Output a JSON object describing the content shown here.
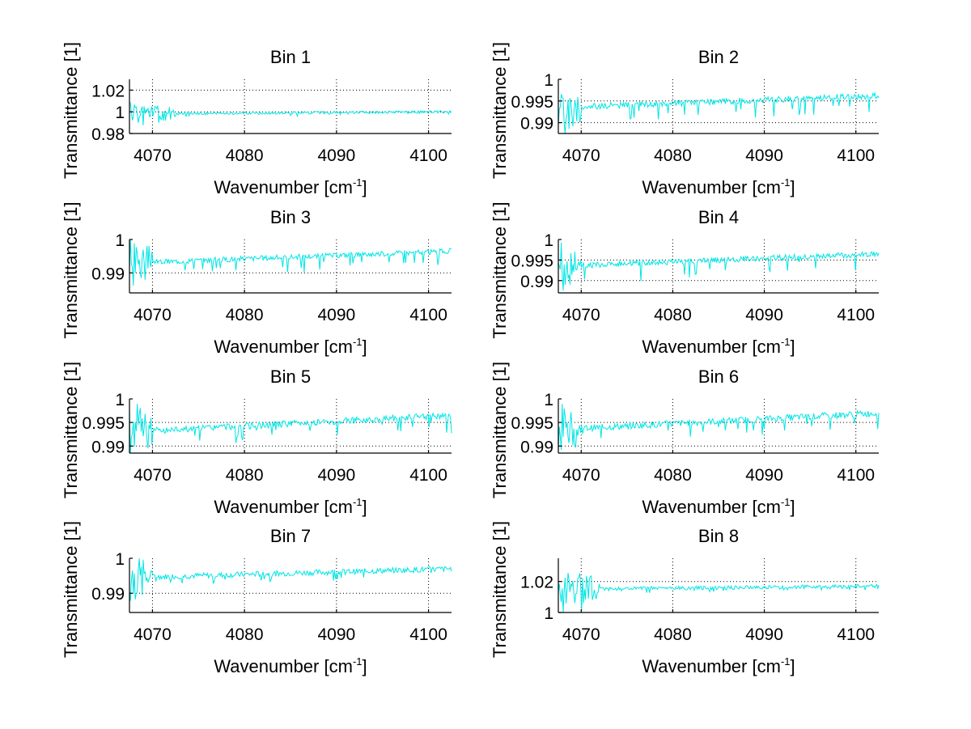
{
  "figure": {
    "background": "#ffffff",
    "line_color": "#00e5e5"
  },
  "chart_data": [
    {
      "type": "line",
      "title": "Bin 1",
      "xlabel": "Wavenumber [cm-1]",
      "xlabel_main": "Wavenumber [cm",
      "xlabel_sup": "-1",
      "xlabel_end": "]",
      "ylabel": "Transmittance [1]",
      "xlim": [
        4067.5,
        4102.5
      ],
      "ylim": [
        0.98,
        1.03
      ],
      "xticks": [
        4070,
        4080,
        4090,
        4100
      ],
      "xtick_labels": [
        "4070",
        "4080",
        "4090",
        "4100"
      ],
      "yticks": [
        0.98,
        1.0,
        1.02
      ],
      "ytick_labels": [
        "0.98",
        "1",
        "1.02"
      ],
      "grid": true,
      "series": [
        {
          "name": "Bin 1",
          "profile": {
            "base_start": 0.998,
            "base_end": 1.0,
            "noise": 0.0012,
            "dips": 0.002,
            "edge_noise": 0.012,
            "edge_end": 4072.5,
            "seed": 1
          }
        }
      ]
    },
    {
      "type": "line",
      "title": "Bin 2",
      "xlabel": "Wavenumber [cm-1]",
      "xlabel_main": "Wavenumber [cm",
      "xlabel_sup": "-1",
      "xlabel_end": "]",
      "ylabel": "Transmittance [1]",
      "xlim": [
        4067.5,
        4102.5
      ],
      "ylim": [
        0.9875,
        1.0
      ],
      "xticks": [
        4070,
        4080,
        4090,
        4100
      ],
      "xtick_labels": [
        "4070",
        "4080",
        "4090",
        "4100"
      ],
      "yticks": [
        0.99,
        0.995,
        1.0
      ],
      "ytick_labels": [
        "0.99",
        "0.995",
        "1"
      ],
      "grid": true,
      "series": [
        {
          "name": "Bin 2",
          "profile": {
            "base_start": 0.9935,
            "base_end": 0.9962,
            "noise": 0.0007,
            "dips": 0.0035,
            "edge_noise": 0.006,
            "edge_end": 4070,
            "seed": 2
          }
        }
      ]
    },
    {
      "type": "line",
      "title": "Bin 3",
      "xlabel": "Wavenumber [cm-1]",
      "xlabel_main": "Wavenumber [cm",
      "xlabel_sup": "-1",
      "xlabel_end": "]",
      "ylabel": "Transmittance [1]",
      "xlim": [
        4067.5,
        4102.5
      ],
      "ylim": [
        0.984,
        1.0
      ],
      "xticks": [
        4070,
        4080,
        4090,
        4100
      ],
      "xtick_labels": [
        "4070",
        "4080",
        "4090",
        "4100"
      ],
      "yticks": [
        0.99,
        1.0
      ],
      "ytick_labels": [
        "0.99",
        "1"
      ],
      "grid": true,
      "series": [
        {
          "name": "Bin 3",
          "profile": {
            "base_start": 0.993,
            "base_end": 0.9965,
            "noise": 0.0008,
            "dips": 0.004,
            "edge_noise": 0.008,
            "edge_end": 4070,
            "seed": 3
          }
        }
      ]
    },
    {
      "type": "line",
      "title": "Bin 4",
      "xlabel": "Wavenumber [cm-1]",
      "xlabel_main": "Wavenumber [cm",
      "xlabel_sup": "-1",
      "xlabel_end": "]",
      "ylabel": "Transmittance [1]",
      "xlim": [
        4067.5,
        4102.5
      ],
      "ylim": [
        0.987,
        1.0
      ],
      "xticks": [
        4070,
        4080,
        4090,
        4100
      ],
      "xtick_labels": [
        "4070",
        "4080",
        "4090",
        "4100"
      ],
      "yticks": [
        0.99,
        0.995,
        1.0
      ],
      "ytick_labels": [
        "0.99",
        "0.995",
        "1"
      ],
      "grid": true,
      "series": [
        {
          "name": "Bin 4",
          "profile": {
            "base_start": 0.9935,
            "base_end": 0.9965,
            "noise": 0.0007,
            "dips": 0.0035,
            "edge_noise": 0.007,
            "edge_end": 4070,
            "seed": 4
          }
        }
      ]
    },
    {
      "type": "line",
      "title": "Bin 5",
      "xlabel": "Wavenumber [cm-1]",
      "xlabel_main": "Wavenumber [cm",
      "xlabel_sup": "-1",
      "xlabel_end": "]",
      "ylabel": "Transmittance [1]",
      "xlim": [
        4067.5,
        4102.5
      ],
      "ylim": [
        0.9885,
        1.0
      ],
      "xticks": [
        4070,
        4080,
        4090,
        4100
      ],
      "xtick_labels": [
        "4070",
        "4080",
        "4090",
        "4100"
      ],
      "yticks": [
        0.99,
        0.995,
        1.0
      ],
      "ytick_labels": [
        "0.99",
        "0.995",
        "1"
      ],
      "grid": true,
      "series": [
        {
          "name": "Bin 5",
          "profile": {
            "base_start": 0.993,
            "base_end": 0.9965,
            "noise": 0.0007,
            "dips": 0.003,
            "edge_noise": 0.007,
            "edge_end": 4070,
            "seed": 5
          }
        }
      ]
    },
    {
      "type": "line",
      "title": "Bin 6",
      "xlabel": "Wavenumber [cm-1]",
      "xlabel_main": "Wavenumber [cm",
      "xlabel_sup": "-1",
      "xlabel_end": "]",
      "ylabel": "Transmittance [1]",
      "xlim": [
        4067.5,
        4102.5
      ],
      "ylim": [
        0.9885,
        1.0
      ],
      "xticks": [
        4070,
        4080,
        4090,
        4100
      ],
      "xtick_labels": [
        "4070",
        "4080",
        "4090",
        "4100"
      ],
      "yticks": [
        0.99,
        0.995,
        1.0
      ],
      "ytick_labels": [
        "0.99",
        "0.995",
        "1"
      ],
      "grid": true,
      "series": [
        {
          "name": "Bin 6",
          "profile": {
            "base_start": 0.9935,
            "base_end": 0.997,
            "noise": 0.0007,
            "dips": 0.0025,
            "edge_noise": 0.006,
            "edge_end": 4070,
            "seed": 6
          }
        }
      ]
    },
    {
      "type": "line",
      "title": "Bin 7",
      "xlabel": "Wavenumber [cm-1]",
      "xlabel_main": "Wavenumber [cm",
      "xlabel_sup": "-1",
      "xlabel_end": "]",
      "ylabel": "Transmittance [1]",
      "xlim": [
        4067.5,
        4102.5
      ],
      "ylim": [
        0.9845,
        1.0
      ],
      "xticks": [
        4070,
        4080,
        4090,
        4100
      ],
      "xtick_labels": [
        "4070",
        "4080",
        "4090",
        "4100"
      ],
      "yticks": [
        0.99,
        1.0
      ],
      "ytick_labels": [
        "0.99",
        "1"
      ],
      "grid": true,
      "series": [
        {
          "name": "Bin 7",
          "profile": {
            "base_start": 0.9945,
            "base_end": 0.997,
            "noise": 0.0008,
            "dips": 0.002,
            "edge_noise": 0.008,
            "edge_end": 4070,
            "seed": 7
          }
        }
      ]
    },
    {
      "type": "line",
      "title": "Bin 8",
      "xlabel": "Wavenumber [cm-1]",
      "xlabel_main": "Wavenumber [cm",
      "xlabel_sup": "-1",
      "xlabel_end": "]",
      "ylabel": "Transmittance [1]",
      "xlim": [
        4067.5,
        4102.5
      ],
      "ylim": [
        1.0,
        1.035
      ],
      "xticks": [
        4070,
        4080,
        4090,
        4100
      ],
      "xtick_labels": [
        "4070",
        "4080",
        "4090",
        "4100"
      ],
      "yticks": [
        1.0,
        1.02
      ],
      "ytick_labels": [
        "1",
        "1.02"
      ],
      "grid": true,
      "series": [
        {
          "name": "Bin 8",
          "profile": {
            "base_start": 1.015,
            "base_end": 1.017,
            "noise": 0.0012,
            "dips": 0.002,
            "edge_noise": 0.018,
            "edge_end": 4072,
            "seed": 8
          }
        }
      ]
    }
  ]
}
